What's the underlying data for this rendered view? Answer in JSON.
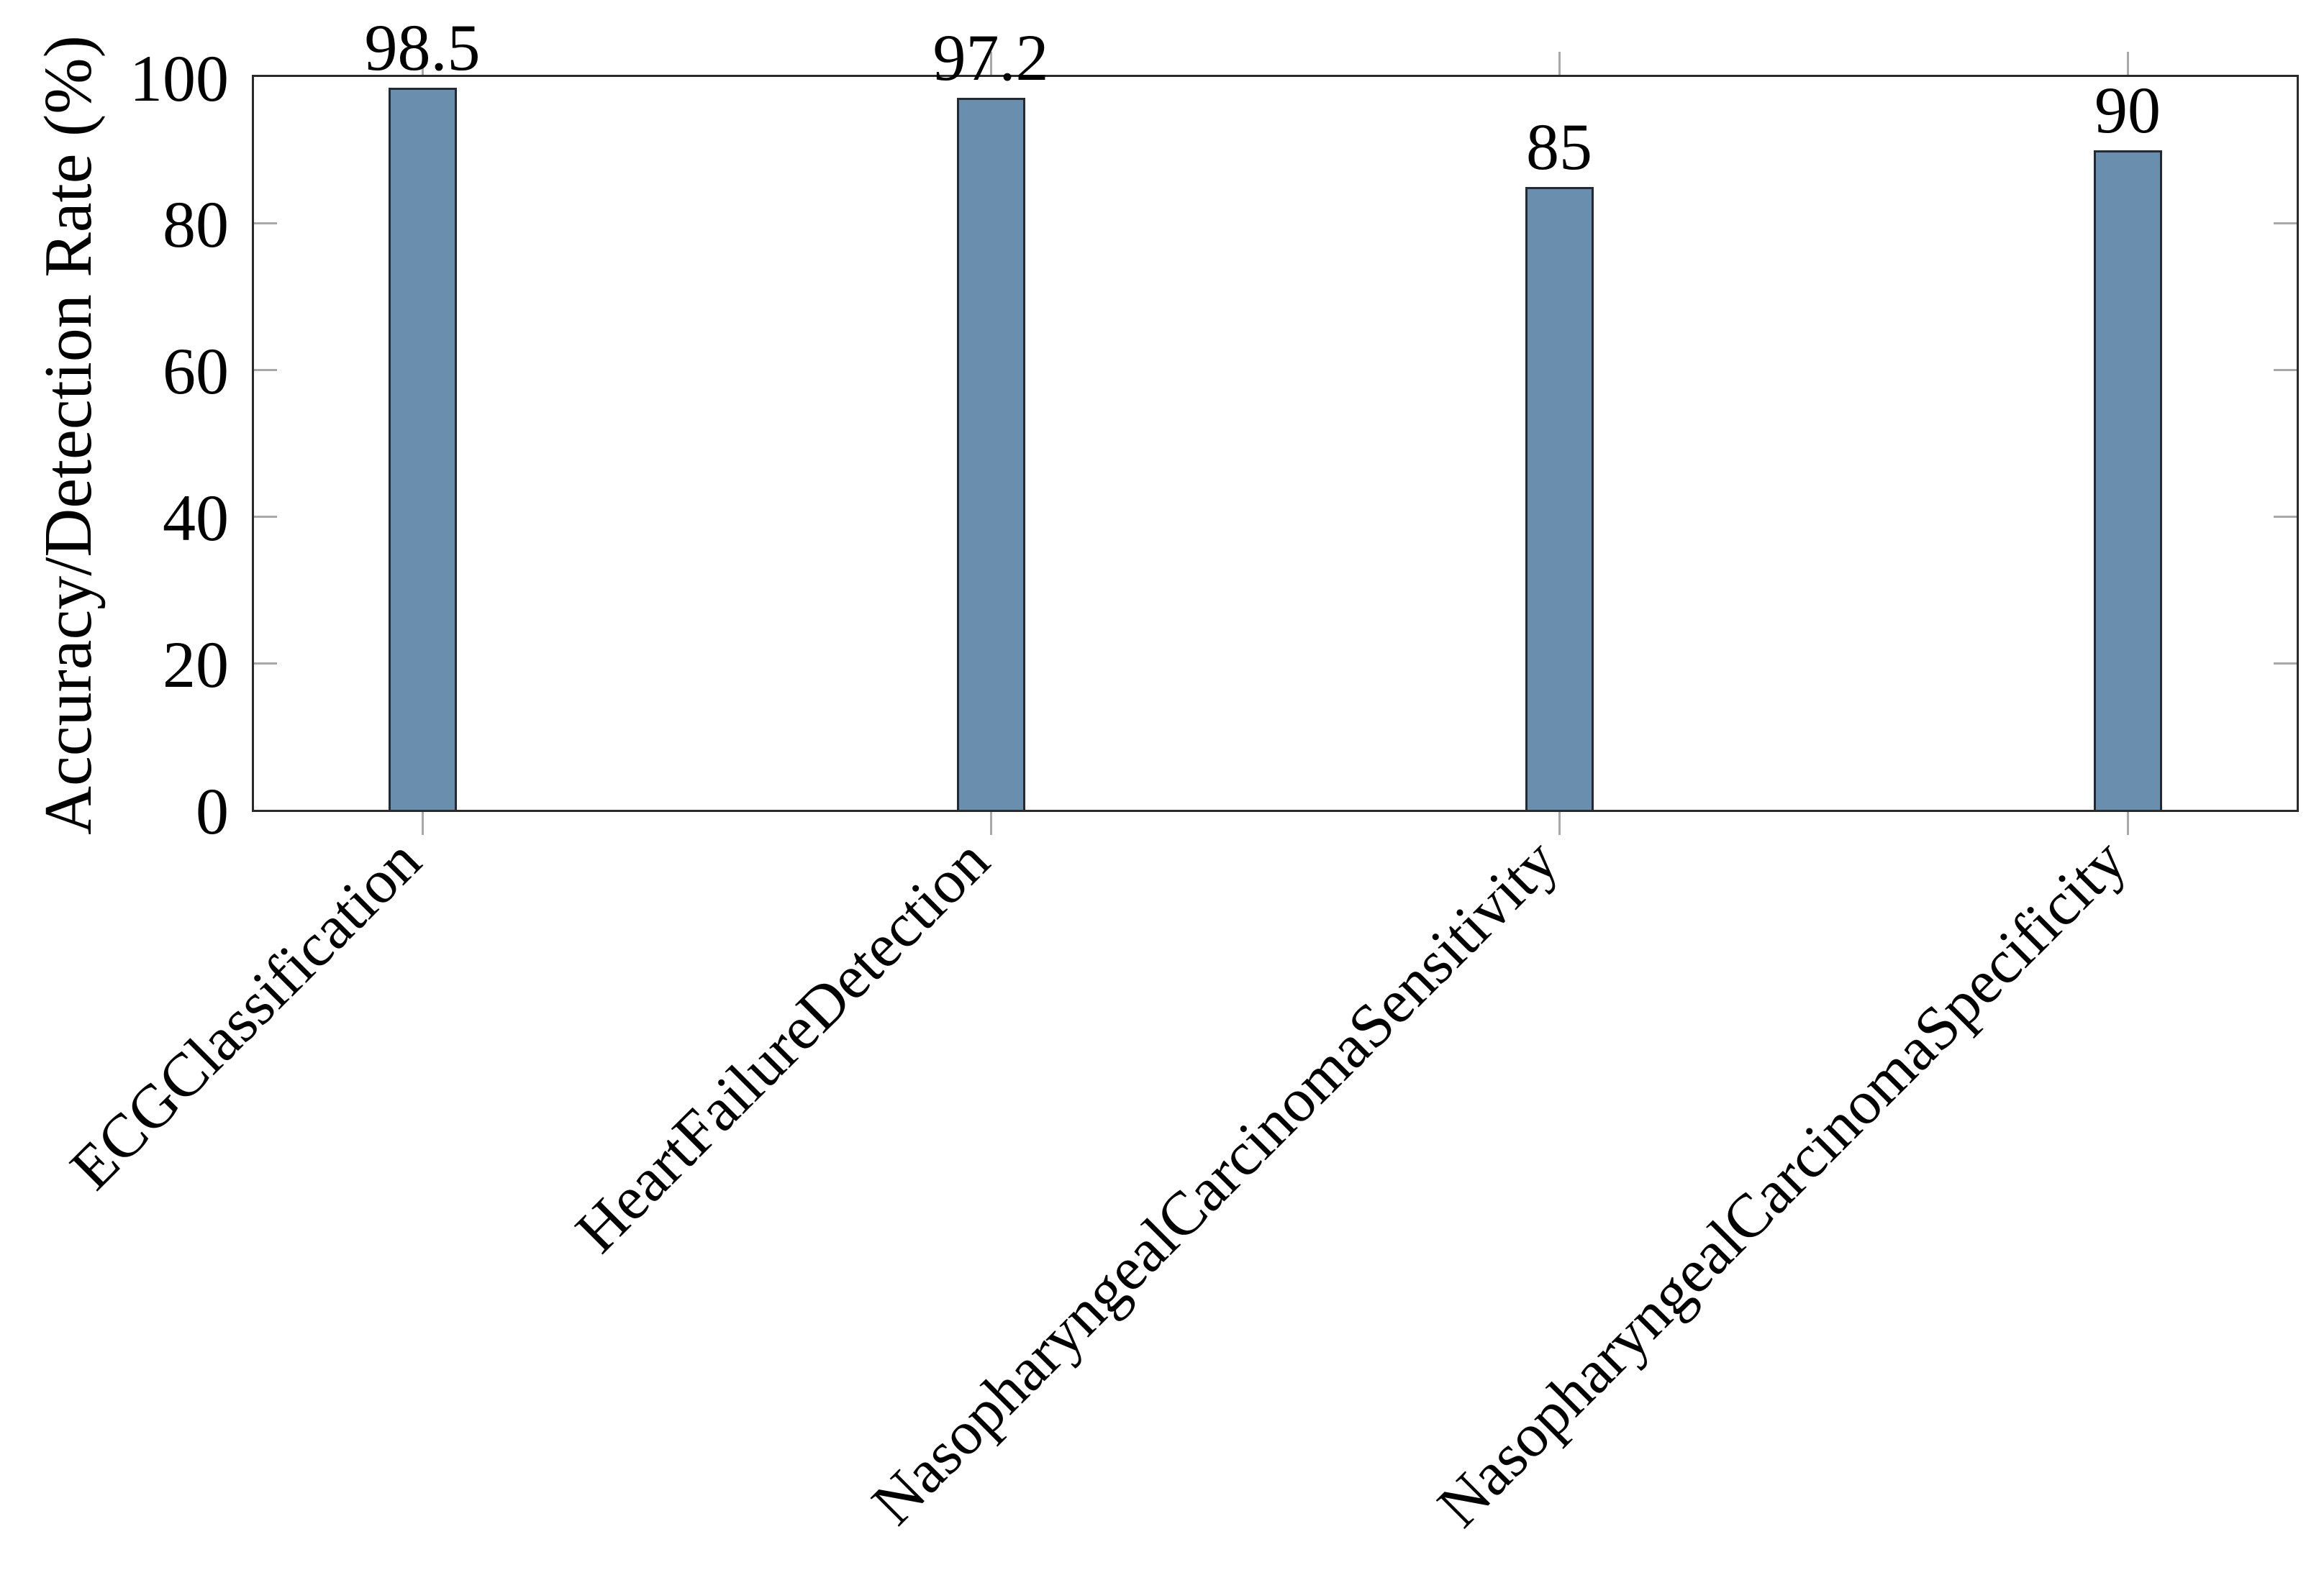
{
  "chart_data": {
    "type": "bar",
    "title": "",
    "xlabel": "",
    "ylabel": "Accuracy/Detection Rate (%)",
    "categories": [
      "ECGClassification",
      "HeartFailureDetection",
      "NasopharyngealCarcinomaSensitivity",
      "NasopharyngealCarcinomaSpecificity"
    ],
    "values": [
      98.5,
      97.2,
      85,
      90
    ],
    "bar_value_labels": [
      "98.5",
      "97.2",
      "85",
      "90"
    ],
    "ylim": [
      0,
      100
    ],
    "yticks": [
      0,
      20,
      40,
      60,
      80,
      100
    ],
    "ytick_labels": [
      "0",
      "20",
      "40",
      "60",
      "80",
      "100"
    ],
    "inner_tick_values": [
      20,
      40,
      60,
      80
    ],
    "x_label_rotation_deg": -45,
    "grid": false,
    "legend": null,
    "colors": {
      "bar_fill": "#6a8fae",
      "bar_border": "#222b33",
      "axis_line": "#2a2a2a",
      "tick_mark": "#a8a8a8",
      "text": "#000000",
      "background": "#ffffff"
    }
  }
}
